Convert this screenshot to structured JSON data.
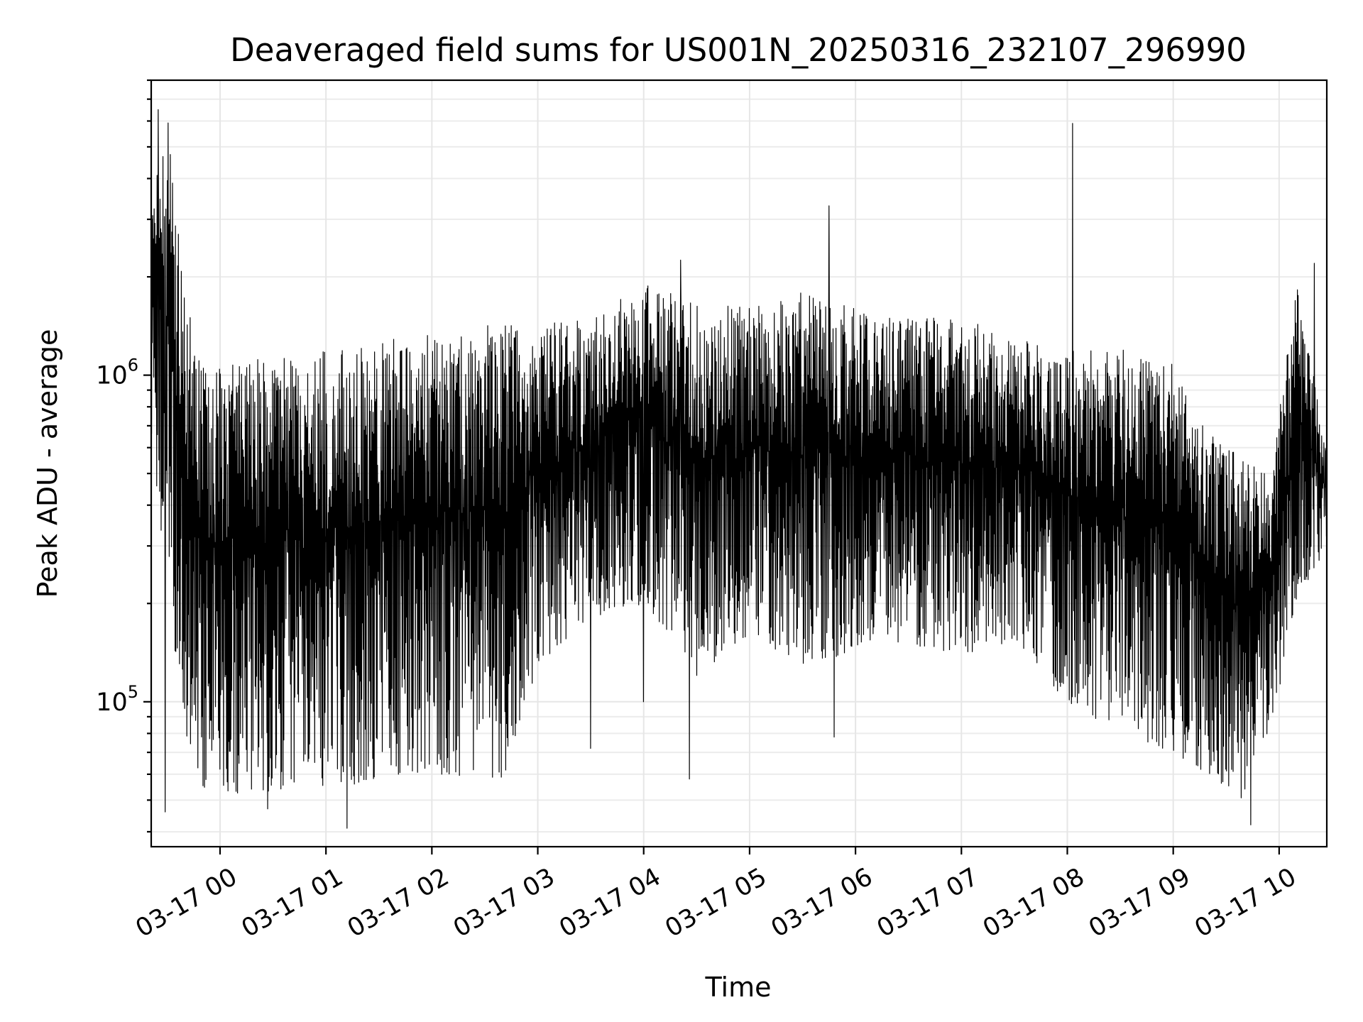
{
  "chart_data": {
    "type": "line",
    "title": "Deaveraged field sums for US001N_20250316_232107_296990",
    "xlabel": "Time",
    "ylabel": "Peak ADU - average",
    "yscale": "log",
    "ylim": [
      36000,
      8000000
    ],
    "xlim": [
      "03-16 23:21",
      "03-17 10:27"
    ],
    "grid": true,
    "x_tick_labels": [
      "03-17 00",
      "03-17 01",
      "03-17 02",
      "03-17 03",
      "03-17 04",
      "03-17 05",
      "03-17 06",
      "03-17 07",
      "03-17 08",
      "03-17 09",
      "03-17 10"
    ],
    "y_ticks": [
      {
        "base": "10",
        "exp": "5",
        "value": 100000
      },
      {
        "base": "10",
        "exp": "6",
        "value": 1000000
      }
    ],
    "series_color": "#000000",
    "envelope": [
      {
        "t": "03-16 23:21",
        "low": 600000,
        "high": 3500000
      },
      {
        "t": "03-16 23:30",
        "low": 230000,
        "high": 6500000
      },
      {
        "t": "03-16 23:40",
        "low": 80000,
        "high": 1800000
      },
      {
        "t": "03-16 23:50",
        "low": 55000,
        "high": 1050000
      },
      {
        "t": "03-17 00:10",
        "low": 50000,
        "high": 1100000
      },
      {
        "t": "03-17 00:40",
        "low": 55000,
        "high": 1150000
      },
      {
        "t": "03-17 01:10",
        "low": 55000,
        "high": 1200000
      },
      {
        "t": "03-17 01:40",
        "low": 60000,
        "high": 1300000
      },
      {
        "t": "03-17 02:10",
        "low": 60000,
        "high": 1350000
      },
      {
        "t": "03-17 02:40",
        "low": 55000,
        "high": 1450000
      },
      {
        "t": "03-17 03:00",
        "low": 130000,
        "high": 1450000
      },
      {
        "t": "03-17 03:30",
        "low": 180000,
        "high": 1500000
      },
      {
        "t": "03-17 04:00",
        "low": 200000,
        "high": 1900000
      },
      {
        "t": "03-17 04:30",
        "low": 120000,
        "high": 1700000
      },
      {
        "t": "03-17 05:00",
        "low": 160000,
        "high": 1600000
      },
      {
        "t": "03-17 05:30",
        "low": 130000,
        "high": 1800000
      },
      {
        "t": "03-17 06:00",
        "low": 140000,
        "high": 1600000
      },
      {
        "t": "03-17 06:30",
        "low": 150000,
        "high": 1500000
      },
      {
        "t": "03-17 07:00",
        "low": 140000,
        "high": 1500000
      },
      {
        "t": "03-17 07:30",
        "low": 150000,
        "high": 1300000
      },
      {
        "t": "03-17 08:00",
        "low": 100000,
        "high": 1200000
      },
      {
        "t": "03-17 08:30",
        "low": 80000,
        "high": 1200000
      },
      {
        "t": "03-17 09:00",
        "low": 70000,
        "high": 1100000
      },
      {
        "t": "03-17 09:20",
        "low": 60000,
        "high": 700000
      },
      {
        "t": "03-17 09:40",
        "low": 50000,
        "high": 550000
      },
      {
        "t": "03-17 09:55",
        "low": 80000,
        "high": 500000
      },
      {
        "t": "03-17 10:10",
        "low": 200000,
        "high": 1900000
      },
      {
        "t": "03-17 10:27",
        "low": 300000,
        "high": 600000
      }
    ],
    "spikes": [
      {
        "t": "03-16 23:25",
        "value": 6500000
      },
      {
        "t": "03-16 23:29",
        "value": 46000
      },
      {
        "t": "03-17 00:27",
        "value": 47000
      },
      {
        "t": "03-17 01:12",
        "value": 41000
      },
      {
        "t": "03-17 03:30",
        "value": 72000
      },
      {
        "t": "03-17 04:00",
        "value": 100000
      },
      {
        "t": "03-17 04:21",
        "value": 2250000
      },
      {
        "t": "03-17 04:26",
        "value": 58000
      },
      {
        "t": "03-17 05:45",
        "value": 3300000
      },
      {
        "t": "03-17 05:48",
        "value": 78000
      },
      {
        "t": "03-17 08:03",
        "value": 5900000
      },
      {
        "t": "03-17 09:44",
        "value": 42000
      },
      {
        "t": "03-17 10:20",
        "value": 2200000
      }
    ]
  }
}
